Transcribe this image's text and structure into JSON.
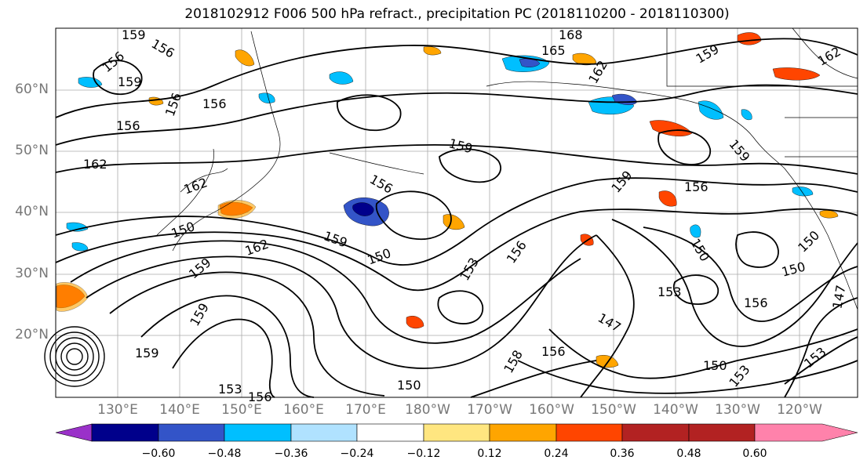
{
  "title": "2018102912 F006 500 hPa refract., precipitation PC (2018110200 - 2018110300)",
  "lat_labels": [
    "60°N",
    "50°N",
    "40°N",
    "30°N",
    "20°N"
  ],
  "lon_labels": [
    "130°E",
    "140°E",
    "150°E",
    "160°E",
    "170°E",
    "180°W",
    "170°W",
    "160°W",
    "150°W",
    "140°W",
    "130°W",
    "120°W"
  ],
  "contour_labels": [
    "159",
    "156",
    "156",
    "159",
    "156",
    "156",
    "168",
    "165",
    "162",
    "159",
    "162",
    "162",
    "156",
    "159",
    "159",
    "156",
    "159",
    "156",
    "162",
    "159",
    "150",
    "156",
    "153",
    "150",
    "153",
    "147",
    "156",
    "150",
    "159",
    "159",
    "153",
    "156",
    "150",
    "159",
    "156",
    "150",
    "153",
    "153",
    "150",
    "147",
    "158",
    "150",
    "162"
  ],
  "colorbar": {
    "colors": [
      "#9a31c9",
      "#00008b",
      "#3354c8",
      "#00bfff",
      "#b0e2ff",
      "#ffffff",
      "#ffe680",
      "#ffa500",
      "#ff4500",
      "#b22222",
      "#ff82ab"
    ],
    "tick_labels": [
      "−0.60",
      "−0.48",
      "−0.36",
      "−0.24",
      "−0.12",
      "0.12",
      "0.24",
      "0.36",
      "0.48",
      "0.60"
    ]
  }
}
